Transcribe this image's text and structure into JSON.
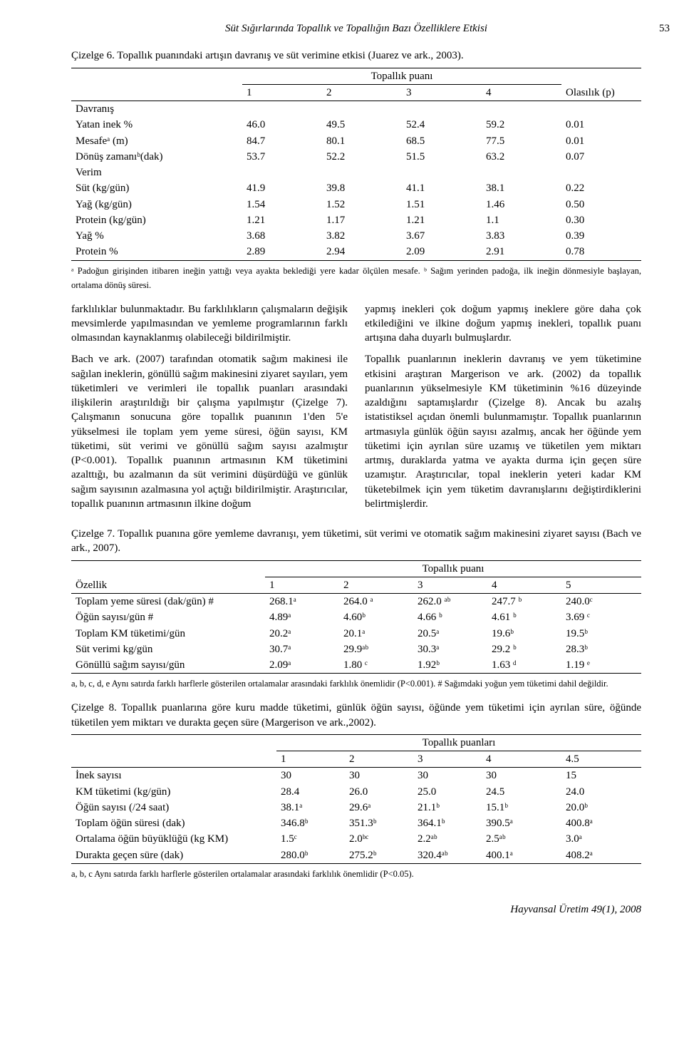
{
  "header": {
    "running_title": "Süt Sığırlarında Topallık ve Topallığın Bazı Özelliklere Etkisi",
    "page_number": "53"
  },
  "table6": {
    "caption": "Çizelge 6. Topallık puanındaki artışın davranış ve süt verimine etkisi (Juarez ve ark., 2003).",
    "spanner": "Topallık puanı",
    "head": [
      "",
      "1",
      "2",
      "3",
      "4",
      "Olasılık (p)"
    ],
    "rows": [
      [
        "Davranış",
        "",
        "",
        "",
        "",
        ""
      ],
      [
        "Yatan inek %",
        "46.0",
        "49.5",
        "52.4",
        "59.2",
        "0.01"
      ],
      [
        "Mesafeᵃ (m)",
        "84.7",
        "80.1",
        "68.5",
        "77.5",
        "0.01"
      ],
      [
        "Dönüş zamanıᵇ(dak)",
        "53.7",
        "52.2",
        "51.5",
        "63.2",
        "0.07"
      ],
      [
        "Verim",
        "",
        "",
        "",
        "",
        ""
      ],
      [
        "Süt (kg/gün)",
        "41.9",
        "39.8",
        "41.1",
        "38.1",
        "0.22"
      ],
      [
        "Yağ (kg/gün)",
        "1.54",
        "1.52",
        "1.51",
        "1.46",
        "0.50"
      ],
      [
        "Protein (kg/gün)",
        "1.21",
        "1.17",
        "1.21",
        "1.1",
        "0.30"
      ],
      [
        "Yağ %",
        "3.68",
        "3.82",
        "3.67",
        "3.83",
        "0.39"
      ],
      [
        "Protein %",
        "2.89",
        "2.94",
        "2.09",
        "2.91",
        "0.78"
      ]
    ],
    "footnote": "ᵃ Padoğun girişinden itibaren ineğin yattığı veya ayakta beklediği yere kadar ölçülen mesafe. ᵇ Sağım yerinden padoğa, ilk ineğin dönmesiyle başlayan, ortalama dönüş süresi."
  },
  "body": {
    "p1": "farklılıklar bulunmaktadır. Bu farklılıkların çalışmaların değişik mevsimlerde yapılmasından ve yemleme programlarının farklı olmasından kaynaklanmış olabileceği bildirilmiştir.",
    "p2": "Bach ve ark. (2007) tarafından otomatik sağım makinesi ile sağılan ineklerin, gönüllü sağım makinesini ziyaret sayıları, yem tüketimleri ve verimleri ile topallık puanları arasındaki ilişkilerin araştırıldığı bir çalışma yapılmıştır (Çizelge 7). Çalışmanın sonucuna göre topallık puanının 1'den 5'e yükselmesi ile toplam yem yeme süresi, öğün sayısı, KM tüketimi, süt verimi ve gönüllü sağım sayısı azalmıştır (P<0.001). Topallık puanının artmasının KM tüketimini azalttığı, bu azalmanın da süt verimini düşürdüğü ve günlük sağım sayısının azalmasına yol açtığı bildirilmiştir. Araştırıcılar, topallık puanının artmasının ilkine doğum",
    "p3": "yapmış inekleri çok doğum yapmış ineklere göre daha çok etkilediğini ve ilkine doğum yapmış inekleri, topallık puanı artışına daha duyarlı bulmuşlardır.",
    "p4": "Topallık puanlarının ineklerin davranış ve yem tüketimine etkisini araştıran Margerison ve ark. (2002) da topallık puanlarının yükselmesiyle KM tüketiminin %16 düzeyinde azaldığını saptamışlardır (Çizelge 8). Ancak bu azalış istatistiksel açıdan önemli bulunmamıştır. Topallık puanlarının artmasıyla günlük öğün sayısı azalmış, ancak her öğünde yem tüketimi için ayrılan süre uzamış ve tüketilen yem miktarı artmış, duraklarda yatma ve ayakta durma için geçen süre uzamıştır. Araştırıcılar, topal ineklerin yeteri kadar KM tüketebilmek için yem tüketim davranışlarını değiştirdiklerini belirtmişlerdir."
  },
  "table7": {
    "caption": "Çizelge 7. Topallık puanına göre yemleme davranışı, yem tüketimi, süt verimi ve otomatik sağım makinesini ziyaret sayısı (Bach ve ark., 2007).",
    "spanner": "Topallık puanı",
    "head": [
      "Özellik",
      "1",
      "2",
      "3",
      "4",
      "5"
    ],
    "rows": [
      [
        "Toplam yeme süresi (dak/gün) #",
        "268.1ᵃ",
        "264.0 ᵃ",
        "262.0 ᵃᵇ",
        "247.7 ᵇ",
        "240.0ᶜ"
      ],
      [
        "Öğün sayısı/gün #",
        "4.89ᵃ",
        "4.60ᵇ",
        "4.66 ᵇ",
        "4.61 ᵇ",
        "3.69 ᶜ"
      ],
      [
        "Toplam KM tüketimi/gün",
        "20.2ᵃ",
        "20.1ᵃ",
        "20.5ᵃ",
        "19.6ᵇ",
        "19.5ᵇ"
      ],
      [
        "Süt verimi kg/gün",
        "30.7ᵃ",
        "29.9ᵃᵇ",
        "30.3ᵃ",
        "29.2 ᵇ",
        "28.3ᵇ"
      ],
      [
        "Gönüllü sağım sayısı/gün",
        "2.09ᵃ",
        "1.80 ᶜ",
        "1.92ᵇ",
        "1.63 ᵈ",
        "1.19 ᵉ"
      ]
    ],
    "footnote": "a, b, c, d, e Aynı satırda farklı harflerle gösterilen ortalamalar arasındaki farklılık önemlidir (P<0.001). # Sağımdaki yoğun yem tüketimi dahil değildir."
  },
  "table8": {
    "caption": "Çizelge 8. Topallık puanlarına göre kuru madde tüketimi, günlük öğün sayısı, öğünde yem tüketimi için ayrılan süre, öğünde tüketilen yem miktarı ve durakta geçen süre (Margerison ve ark.,2002).",
    "spanner": "Topallık puanları",
    "head": [
      "",
      "1",
      "2",
      "3",
      "4",
      "4.5"
    ],
    "rows": [
      [
        "İnek sayısı",
        "30",
        "30",
        "30",
        "30",
        "15"
      ],
      [
        "KM tüketimi (kg/gün)",
        "28.4",
        "26.0",
        "25.0",
        "24.5",
        "24.0"
      ],
      [
        "Öğün sayısı (/24 saat)",
        "38.1ᵃ",
        "29.6ᵃ",
        "21.1ᵇ",
        "15.1ᵇ",
        "20.0ᵇ"
      ],
      [
        "Toplam öğün süresi (dak)",
        "346.8ᵇ",
        "351.3ᵇ",
        "364.1ᵇ",
        "390.5ᵃ",
        "400.8ᵃ"
      ],
      [
        "Ortalama öğün büyüklüğü (kg KM)",
        "1.5ᶜ",
        "2.0ᵇᶜ",
        "2.2ᵃᵇ",
        "2.5ᵃᵇ",
        "3.0ᵃ"
      ],
      [
        "Durakta geçen süre (dak)",
        "280.0ᵇ",
        "275.2ᵇ",
        "320.4ᵃᵇ",
        "400.1ᵃ",
        "408.2ᵃ"
      ]
    ],
    "footnote": "a, b, c Aynı satırda farklı harflerle gösterilen ortalamalar arasındaki farklılık önemlidir (P<0.05)."
  },
  "footer": {
    "journal": "Hayvansal Üretim 49(1), 2008"
  }
}
